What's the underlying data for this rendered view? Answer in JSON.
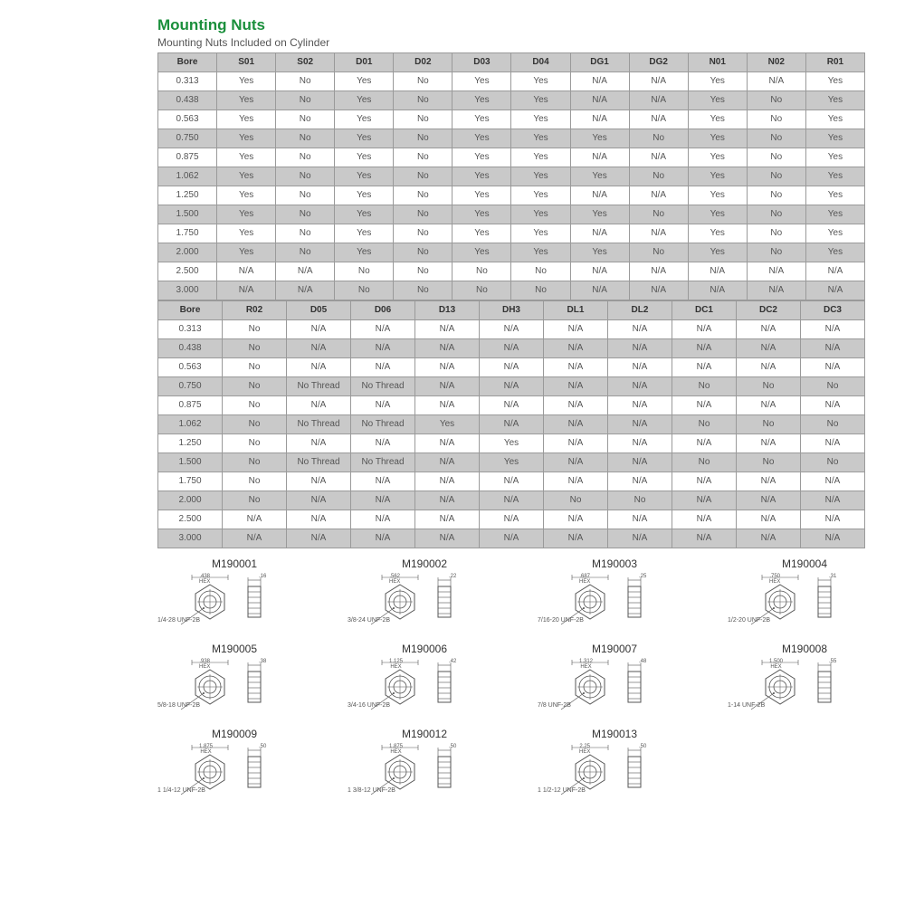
{
  "title": "Mounting Nuts",
  "subtitle": "Mounting Nuts Included on Cylinder",
  "table1": {
    "headers": [
      "Bore",
      "S01",
      "S02",
      "D01",
      "D02",
      "D03",
      "D04",
      "DG1",
      "DG2",
      "N01",
      "N02",
      "R01"
    ],
    "rows": [
      [
        "0.313",
        "Yes",
        "No",
        "Yes",
        "No",
        "Yes",
        "Yes",
        "N/A",
        "N/A",
        "Yes",
        "N/A",
        "Yes"
      ],
      [
        "0.438",
        "Yes",
        "No",
        "Yes",
        "No",
        "Yes",
        "Yes",
        "N/A",
        "N/A",
        "Yes",
        "No",
        "Yes"
      ],
      [
        "0.563",
        "Yes",
        "No",
        "Yes",
        "No",
        "Yes",
        "Yes",
        "N/A",
        "N/A",
        "Yes",
        "No",
        "Yes"
      ],
      [
        "0.750",
        "Yes",
        "No",
        "Yes",
        "No",
        "Yes",
        "Yes",
        "Yes",
        "No",
        "Yes",
        "No",
        "Yes"
      ],
      [
        "0.875",
        "Yes",
        "No",
        "Yes",
        "No",
        "Yes",
        "Yes",
        "N/A",
        "N/A",
        "Yes",
        "No",
        "Yes"
      ],
      [
        "1.062",
        "Yes",
        "No",
        "Yes",
        "No",
        "Yes",
        "Yes",
        "Yes",
        "No",
        "Yes",
        "No",
        "Yes"
      ],
      [
        "1.250",
        "Yes",
        "No",
        "Yes",
        "No",
        "Yes",
        "Yes",
        "N/A",
        "N/A",
        "Yes",
        "No",
        "Yes"
      ],
      [
        "1.500",
        "Yes",
        "No",
        "Yes",
        "No",
        "Yes",
        "Yes",
        "Yes",
        "No",
        "Yes",
        "No",
        "Yes"
      ],
      [
        "1.750",
        "Yes",
        "No",
        "Yes",
        "No",
        "Yes",
        "Yes",
        "N/A",
        "N/A",
        "Yes",
        "No",
        "Yes"
      ],
      [
        "2.000",
        "Yes",
        "No",
        "Yes",
        "No",
        "Yes",
        "Yes",
        "Yes",
        "No",
        "Yes",
        "No",
        "Yes"
      ],
      [
        "2.500",
        "N/A",
        "N/A",
        "No",
        "No",
        "No",
        "No",
        "N/A",
        "N/A",
        "N/A",
        "N/A",
        "N/A"
      ],
      [
        "3.000",
        "N/A",
        "N/A",
        "No",
        "No",
        "No",
        "No",
        "N/A",
        "N/A",
        "N/A",
        "N/A",
        "N/A"
      ]
    ]
  },
  "table2": {
    "headers": [
      "Bore",
      "R02",
      "D05",
      "D06",
      "D13",
      "DH3",
      "DL1",
      "DL2",
      "DC1",
      "DC2",
      "DC3"
    ],
    "rows": [
      [
        "0.313",
        "No",
        "N/A",
        "N/A",
        "N/A",
        "N/A",
        "N/A",
        "N/A",
        "N/A",
        "N/A",
        "N/A"
      ],
      [
        "0.438",
        "No",
        "N/A",
        "N/A",
        "N/A",
        "N/A",
        "N/A",
        "N/A",
        "N/A",
        "N/A",
        "N/A"
      ],
      [
        "0.563",
        "No",
        "N/A",
        "N/A",
        "N/A",
        "N/A",
        "N/A",
        "N/A",
        "N/A",
        "N/A",
        "N/A"
      ],
      [
        "0.750",
        "No",
        "No Thread",
        "No Thread",
        "N/A",
        "N/A",
        "N/A",
        "N/A",
        "No",
        "No",
        "No"
      ],
      [
        "0.875",
        "No",
        "N/A",
        "N/A",
        "N/A",
        "N/A",
        "N/A",
        "N/A",
        "N/A",
        "N/A",
        "N/A"
      ],
      [
        "1.062",
        "No",
        "No Thread",
        "No Thread",
        "Yes",
        "N/A",
        "N/A",
        "N/A",
        "No",
        "No",
        "No"
      ],
      [
        "1.250",
        "No",
        "N/A",
        "N/A",
        "N/A",
        "Yes",
        "N/A",
        "N/A",
        "N/A",
        "N/A",
        "N/A"
      ],
      [
        "1.500",
        "No",
        "No Thread",
        "No Thread",
        "N/A",
        "Yes",
        "N/A",
        "N/A",
        "No",
        "No",
        "No"
      ],
      [
        "1.750",
        "No",
        "N/A",
        "N/A",
        "N/A",
        "N/A",
        "N/A",
        "N/A",
        "N/A",
        "N/A",
        "N/A"
      ],
      [
        "2.000",
        "No",
        "N/A",
        "N/A",
        "N/A",
        "N/A",
        "No",
        "No",
        "N/A",
        "N/A",
        "N/A"
      ],
      [
        "2.500",
        "N/A",
        "N/A",
        "N/A",
        "N/A",
        "N/A",
        "N/A",
        "N/A",
        "N/A",
        "N/A",
        "N/A"
      ],
      [
        "3.000",
        "N/A",
        "N/A",
        "N/A",
        "N/A",
        "N/A",
        "N/A",
        "N/A",
        "N/A",
        "N/A",
        "N/A"
      ]
    ]
  },
  "nuts": [
    [
      {
        "part": "M190001",
        "hex": ".438",
        "thk": ".16",
        "thread": "1/4-28 UNF-2B"
      },
      {
        "part": "M190002",
        "hex": ".562",
        "thk": ".22",
        "thread": "3/8-24 UNF-2B"
      },
      {
        "part": "M190003",
        "hex": ".687",
        "thk": ".25",
        "thread": "7/16-20 UNF-2B"
      },
      {
        "part": "M190004",
        "hex": ".750",
        "thk": ".31",
        "thread": "1/2-20 UNF-2B"
      }
    ],
    [
      {
        "part": "M190005",
        "hex": ".938",
        "thk": ".38",
        "thread": "5/8-18 UNF-2B"
      },
      {
        "part": "M190006",
        "hex": "1.125",
        "thk": ".42",
        "thread": "3/4-16 UNF-2B"
      },
      {
        "part": "M190007",
        "hex": "1.312",
        "thk": ".48",
        "thread": "7/8 UNF-2B"
      },
      {
        "part": "M190008",
        "hex": "1.500",
        "thk": ".55",
        "thread": "1-14 UNF-2B"
      }
    ],
    [
      {
        "part": "M190009",
        "hex": "1.875",
        "thk": ".50",
        "thread": "1 1/4-12 UNF-2B"
      },
      {
        "part": "M190012",
        "hex": "1.875",
        "thk": ".50",
        "thread": "1 3/8-12 UNF-2B"
      },
      {
        "part": "M190013",
        "hex": "2.25",
        "thk": ".50",
        "thread": "1 1/2-12 UNF-2B"
      }
    ]
  ],
  "hex_label": "HEX",
  "colors": {
    "title": "#1a8f3b",
    "grid": "#9a9a9a",
    "shade": "#c9c9c9",
    "text": "#4a4a4a",
    "stroke": "#555555"
  }
}
